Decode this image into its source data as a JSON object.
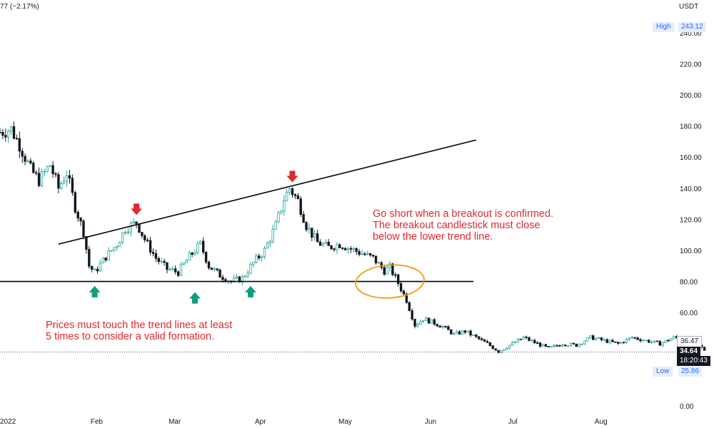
{
  "header": {
    "change_text": "77 (−2.17%)"
  },
  "axis": {
    "currency": "USDT"
  },
  "price_labels": {
    "high_label": "High",
    "high_value": "243.12",
    "low_label": "Low",
    "low_value": "25.86",
    "last_close": "36.47",
    "current": "34.64",
    "countdown": "18:20:43"
  },
  "annotations": {
    "short_text": "Go short when a breakout is confirmed.\nThe breakout candlestick must close\nbelow the lower trend line.",
    "touch_text": "Prices must touch the trend lines at least\n5 times to consider a valid formation."
  },
  "colors": {
    "up": "#26a69a",
    "down": "#131722",
    "arrow_down": "#e0282e",
    "arrow_up": "#0e9f7e",
    "circle": "#f39c12",
    "text_red": "#e0282e",
    "trendline": "#000000"
  },
  "chart_data": {
    "type": "candlestick",
    "y_axis": {
      "ticks": [
        0,
        20,
        40,
        60,
        80,
        100,
        120,
        140,
        160,
        180,
        200,
        220,
        240
      ],
      "tick_labels": [
        "0.00",
        "",
        "",
        "60.00",
        "80.00",
        "100.00",
        "120.00",
        "140.00",
        "160.00",
        "180.00",
        "200.00",
        "220.00",
        "240.00"
      ],
      "ylim": [
        0,
        255
      ]
    },
    "x_axis": {
      "labels": [
        "2022",
        "Feb",
        "Mar",
        "Apr",
        "May",
        "Jun",
        "Jul",
        "Aug"
      ],
      "dates": [
        "2022-01-01",
        "2022-02-01",
        "2022-03-01",
        "2022-04-01",
        "2022-05-01",
        "2022-06-01",
        "2022-07-01",
        "2022-08-01"
      ]
    },
    "daily_close_path": [
      [
        "2022-01-01",
        176
      ],
      [
        "2022-01-05",
        178
      ],
      [
        "2022-01-08",
        168
      ],
      [
        "2022-01-12",
        152
      ],
      [
        "2022-01-15",
        145
      ],
      [
        "2022-01-19",
        155
      ],
      [
        "2022-01-22",
        140
      ],
      [
        "2022-01-25",
        150
      ],
      [
        "2022-01-28",
        128
      ],
      [
        "2022-01-31",
        112
      ],
      [
        "2022-02-02",
        90
      ],
      [
        "2022-02-04",
        86
      ],
      [
        "2022-02-08",
        96
      ],
      [
        "2022-02-12",
        104
      ],
      [
        "2022-02-15",
        114
      ],
      [
        "2022-02-19",
        118
      ],
      [
        "2022-02-22",
        107
      ],
      [
        "2022-02-26",
        95
      ],
      [
        "2022-03-02",
        88
      ],
      [
        "2022-03-06",
        86
      ],
      [
        "2022-03-10",
        96
      ],
      [
        "2022-03-14",
        104
      ],
      [
        "2022-03-17",
        90
      ],
      [
        "2022-03-21",
        84
      ],
      [
        "2022-03-25",
        80
      ],
      [
        "2022-03-29",
        82
      ],
      [
        "2022-04-02",
        92
      ],
      [
        "2022-04-06",
        100
      ],
      [
        "2022-04-10",
        116
      ],
      [
        "2022-04-13",
        133
      ],
      [
        "2022-04-15",
        140
      ],
      [
        "2022-04-18",
        132
      ],
      [
        "2022-04-21",
        116
      ],
      [
        "2022-04-25",
        105
      ],
      [
        "2022-04-29",
        102
      ],
      [
        "2022-05-03",
        104
      ],
      [
        "2022-05-07",
        101
      ],
      [
        "2022-05-11",
        98
      ],
      [
        "2022-05-15",
        95
      ],
      [
        "2022-05-19",
        87
      ],
      [
        "2022-05-21",
        89
      ],
      [
        "2022-05-24",
        79
      ],
      [
        "2022-05-27",
        68
      ],
      [
        "2022-05-30",
        52
      ],
      [
        "2022-06-02",
        56
      ],
      [
        "2022-06-05",
        54
      ],
      [
        "2022-06-09",
        51
      ],
      [
        "2022-06-13",
        46
      ],
      [
        "2022-06-17",
        48
      ],
      [
        "2022-06-21",
        44
      ],
      [
        "2022-06-25",
        40
      ],
      [
        "2022-06-29",
        35
      ],
      [
        "2022-07-03",
        39
      ],
      [
        "2022-07-08",
        44
      ],
      [
        "2022-07-13",
        40
      ],
      [
        "2022-07-17",
        37
      ],
      [
        "2022-07-22",
        40
      ],
      [
        "2022-07-27",
        39
      ],
      [
        "2022-08-01",
        44
      ],
      [
        "2022-08-06",
        42
      ],
      [
        "2022-08-11",
        40
      ],
      [
        "2022-08-16",
        44
      ],
      [
        "2022-08-21",
        42
      ],
      [
        "2022-08-26",
        40
      ],
      [
        "2022-08-31",
        44
      ],
      [
        "2022-09-04",
        43
      ],
      [
        "2022-09-08",
        40
      ],
      [
        "2022-09-11",
        36
      ]
    ],
    "trendlines": [
      {
        "name": "upper",
        "points": [
          [
            "2022-01-22",
            104
          ],
          [
            "2022-06-21",
            171
          ]
        ]
      },
      {
        "name": "lower",
        "points": [
          [
            "2022-01-01",
            80
          ],
          [
            "2022-06-20",
            80
          ]
        ]
      }
    ],
    "markers": [
      {
        "type": "arrow-down",
        "x": "2022-02-19",
        "y": 126
      },
      {
        "type": "arrow-down",
        "x": "2022-04-16",
        "y": 147
      },
      {
        "type": "arrow-up",
        "x": "2022-02-04",
        "y": 73
      },
      {
        "type": "arrow-up",
        "x": "2022-03-12",
        "y": 69
      },
      {
        "type": "arrow-up",
        "x": "2022-04-01",
        "y": 73
      }
    ],
    "highlight_circle": {
      "center": [
        "2022-05-21",
        80
      ],
      "label": "breakout"
    },
    "price_lines": {
      "current": 34.64,
      "last_close": 36.47
    }
  }
}
